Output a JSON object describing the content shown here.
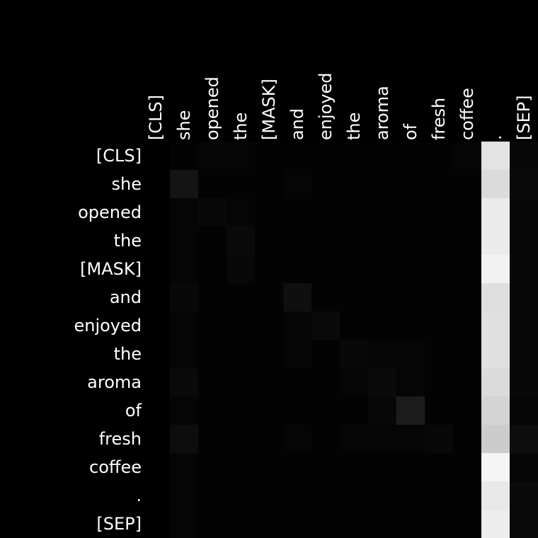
{
  "chart_data": {
    "type": "heatmap",
    "title": "",
    "xlabel": "",
    "ylabel": "",
    "colormap": "grayscale",
    "background_color": "#000000",
    "label_color": "#ffffff",
    "x_labels": [
      "[CLS]",
      "she",
      "opened",
      "the",
      "[MASK]",
      "and",
      "enjoyed",
      "the",
      "aroma",
      "of",
      "fresh",
      "coffee",
      ".",
      "[SEP]"
    ],
    "y_labels": [
      "[CLS]",
      "she",
      "opened",
      "the",
      "[MASK]",
      "and",
      "enjoyed",
      "the",
      "aroma",
      "of",
      "fresh",
      "coffee",
      ".",
      "[SEP]"
    ],
    "values": [
      [
        0.0,
        0.01,
        0.02,
        0.02,
        0.01,
        0.01,
        0.01,
        0.01,
        0.01,
        0.01,
        0.01,
        0.02,
        0.89,
        0.03
      ],
      [
        0.0,
        0.08,
        0.01,
        0.01,
        0.01,
        0.02,
        0.01,
        0.01,
        0.01,
        0.01,
        0.01,
        0.01,
        0.86,
        0.04
      ],
      [
        0.0,
        0.02,
        0.03,
        0.02,
        0.01,
        0.01,
        0.01,
        0.01,
        0.01,
        0.01,
        0.01,
        0.01,
        0.92,
        0.03
      ],
      [
        0.0,
        0.02,
        0.01,
        0.04,
        0.01,
        0.01,
        0.01,
        0.01,
        0.01,
        0.01,
        0.01,
        0.01,
        0.92,
        0.03
      ],
      [
        0.0,
        0.02,
        0.01,
        0.03,
        0.01,
        0.01,
        0.01,
        0.01,
        0.01,
        0.01,
        0.01,
        0.01,
        0.95,
        0.03
      ],
      [
        0.0,
        0.03,
        0.01,
        0.01,
        0.01,
        0.06,
        0.01,
        0.01,
        0.01,
        0.01,
        0.01,
        0.01,
        0.87,
        0.03
      ],
      [
        0.0,
        0.02,
        0.01,
        0.01,
        0.01,
        0.02,
        0.04,
        0.01,
        0.01,
        0.01,
        0.01,
        0.01,
        0.88,
        0.03
      ],
      [
        0.0,
        0.02,
        0.01,
        0.01,
        0.01,
        0.02,
        0.01,
        0.03,
        0.02,
        0.02,
        0.01,
        0.01,
        0.88,
        0.03
      ],
      [
        0.0,
        0.04,
        0.01,
        0.01,
        0.01,
        0.01,
        0.01,
        0.02,
        0.04,
        0.02,
        0.01,
        0.01,
        0.86,
        0.03
      ],
      [
        0.0,
        0.02,
        0.01,
        0.01,
        0.01,
        0.01,
        0.01,
        0.01,
        0.03,
        0.11,
        0.01,
        0.01,
        0.83,
        0.02
      ],
      [
        0.0,
        0.05,
        0.01,
        0.01,
        0.01,
        0.02,
        0.01,
        0.02,
        0.02,
        0.02,
        0.03,
        0.01,
        0.8,
        0.05
      ],
      [
        0.0,
        0.02,
        0.01,
        0.01,
        0.01,
        0.01,
        0.01,
        0.01,
        0.01,
        0.01,
        0.01,
        0.01,
        0.96,
        0.02
      ],
      [
        0.0,
        0.02,
        0.01,
        0.01,
        0.01,
        0.01,
        0.01,
        0.01,
        0.01,
        0.01,
        0.01,
        0.01,
        0.91,
        0.04
      ],
      [
        0.0,
        0.02,
        0.01,
        0.01,
        0.01,
        0.01,
        0.01,
        0.01,
        0.01,
        0.01,
        0.01,
        0.01,
        0.93,
        0.04
      ]
    ]
  }
}
